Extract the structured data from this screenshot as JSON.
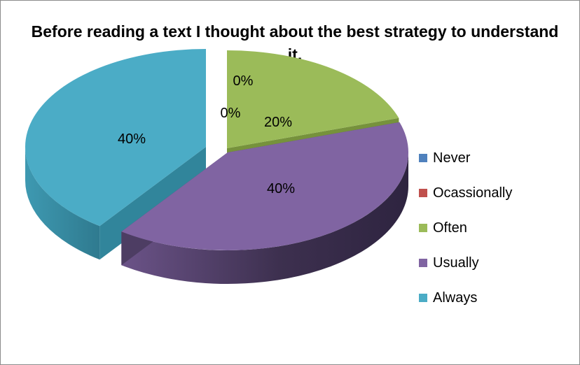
{
  "chart_data": {
    "type": "pie",
    "title": "Before reading a text I thought about the best strategy to understand it.",
    "categories": [
      "Never",
      "Ocassionally",
      "Often",
      "Usually",
      "Always"
    ],
    "values": [
      0,
      0,
      20,
      40,
      40
    ],
    "data_labels": [
      "0%",
      "0%",
      "20%",
      "40%",
      "40%"
    ],
    "colors": [
      "#4f81bd",
      "#c0504d",
      "#9bbb59",
      "#8064a2",
      "#4bacc6"
    ],
    "side_colors": [
      "#3a6496",
      "#953c3a",
      "#76923c",
      "#4d3d63",
      "#31859b"
    ],
    "legend_position": "right",
    "style": "3d-exploded"
  }
}
